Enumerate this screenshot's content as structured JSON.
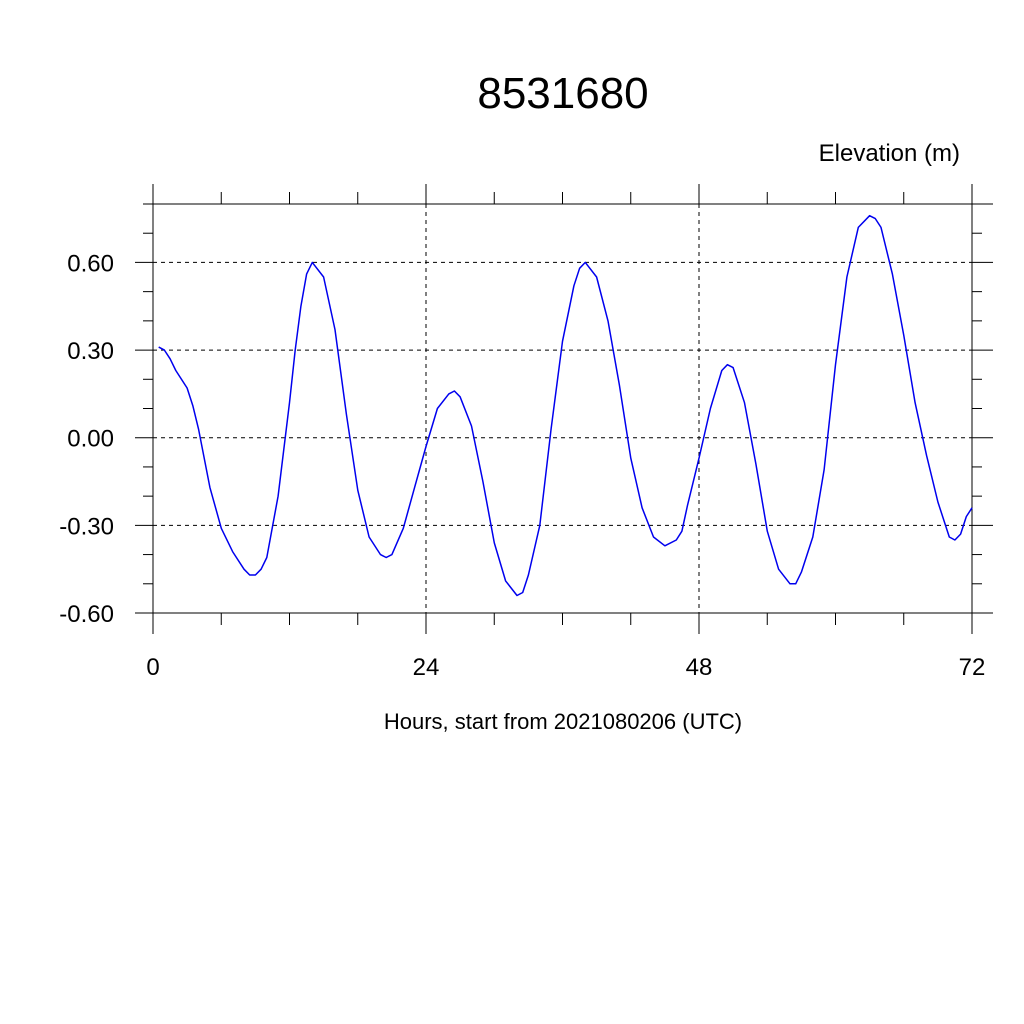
{
  "chart_data": {
    "type": "line",
    "title": "8531680",
    "ylabel": "Elevation (m)",
    "xlabel": "Hours, start from 2021080206 (UTC)",
    "xlim": [
      0,
      72
    ],
    "ylim": [
      -0.6,
      0.8
    ],
    "xticks": [
      0,
      24,
      48,
      72
    ],
    "xtick_labels": [
      "0",
      "24",
      "48",
      "72"
    ],
    "yticks": [
      0.6,
      0.3,
      0.0,
      -0.3,
      -0.6
    ],
    "ytick_labels": [
      "0.60",
      "0.30",
      "0.00",
      "-0.30",
      "-0.60"
    ],
    "grid": true,
    "line_color": "#0000ee",
    "series": [
      {
        "x": [
          0.5,
          1,
          1.5,
          2,
          3,
          3.5,
          4,
          5,
          6,
          7,
          8,
          8.5,
          9,
          9.5,
          10,
          11,
          12,
          12.5,
          13,
          13.5,
          14,
          15,
          16,
          17,
          18,
          19,
          20,
          20.5,
          21,
          22,
          23,
          24,
          25,
          26,
          26.5,
          27,
          28,
          29,
          30,
          31,
          32,
          32.5,
          33,
          34,
          35,
          36,
          37,
          37.5,
          38,
          39,
          40,
          41,
          42,
          43,
          44,
          45,
          46,
          46.5,
          47,
          48,
          49,
          50,
          50.5,
          51,
          52,
          53,
          54,
          55,
          56,
          56.5,
          57,
          58,
          59,
          60,
          61,
          62,
          63,
          63.5,
          64,
          65,
          66,
          67,
          68,
          69,
          70,
          70.5,
          71,
          71.5,
          72
        ],
        "y": [
          0.31,
          0.3,
          0.27,
          0.23,
          0.17,
          0.11,
          0.03,
          -0.17,
          -0.31,
          -0.39,
          -0.45,
          -0.47,
          -0.47,
          -0.45,
          -0.41,
          -0.2,
          0.12,
          0.3,
          0.45,
          0.56,
          0.6,
          0.55,
          0.37,
          0.08,
          -0.18,
          -0.34,
          -0.4,
          -0.41,
          -0.4,
          -0.31,
          -0.17,
          -0.03,
          0.1,
          0.15,
          0.16,
          0.14,
          0.04,
          -0.15,
          -0.36,
          -0.49,
          -0.54,
          -0.53,
          -0.47,
          -0.3,
          0.03,
          0.33,
          0.52,
          0.58,
          0.6,
          0.55,
          0.4,
          0.18,
          -0.07,
          -0.24,
          -0.34,
          -0.37,
          -0.35,
          -0.32,
          -0.23,
          -0.07,
          0.1,
          0.23,
          0.25,
          0.24,
          0.12,
          -0.09,
          -0.32,
          -0.45,
          -0.5,
          -0.5,
          -0.46,
          -0.34,
          -0.11,
          0.25,
          0.55,
          0.72,
          0.76,
          0.75,
          0.72,
          0.56,
          0.35,
          0.12,
          -0.06,
          -0.22,
          -0.34,
          -0.35,
          -0.33,
          -0.27,
          -0.24
        ]
      }
    ]
  }
}
